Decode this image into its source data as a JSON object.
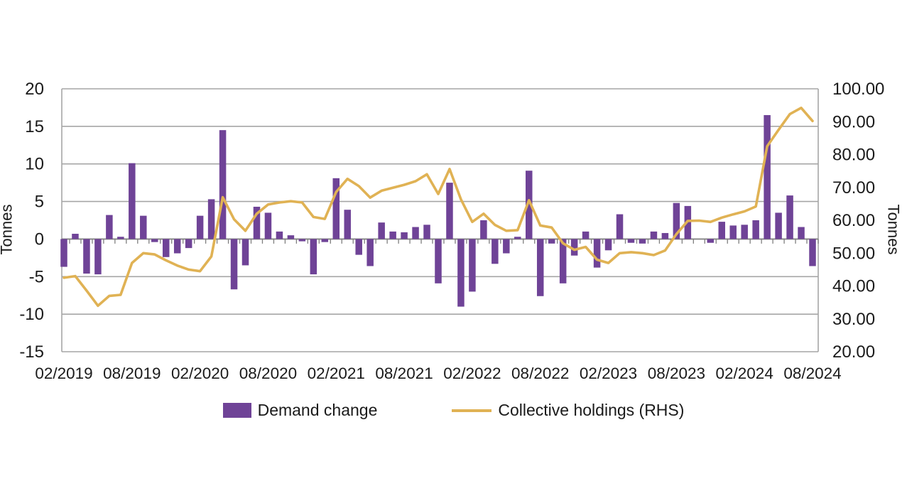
{
  "chart_data": {
    "type": "bar",
    "title": "",
    "categories": [
      "02/2019",
      "03/2019",
      "04/2019",
      "05/2019",
      "06/2019",
      "07/2019",
      "08/2019",
      "09/2019",
      "10/2019",
      "11/2019",
      "12/2019",
      "01/2020",
      "02/2020",
      "03/2020",
      "04/2020",
      "05/2020",
      "06/2020",
      "07/2020",
      "08/2020",
      "09/2020",
      "10/2020",
      "11/2020",
      "12/2020",
      "01/2021",
      "02/2021",
      "03/2021",
      "04/2021",
      "05/2021",
      "06/2021",
      "07/2021",
      "08/2021",
      "09/2021",
      "10/2021",
      "11/2021",
      "12/2021",
      "01/2022",
      "02/2022",
      "03/2022",
      "04/2022",
      "05/2022",
      "06/2022",
      "07/2022",
      "08/2022",
      "09/2022",
      "10/2022",
      "11/2022",
      "12/2022",
      "01/2023",
      "02/2023",
      "03/2023",
      "04/2023",
      "05/2023",
      "06/2023",
      "07/2023",
      "08/2023",
      "09/2023",
      "10/2023",
      "11/2023",
      "12/2023",
      "01/2024",
      "02/2024",
      "03/2024",
      "04/2024",
      "05/2024",
      "06/2024",
      "07/2024",
      "08/2024"
    ],
    "series": [
      {
        "name": "Demand change",
        "type": "bar",
        "axis": "left",
        "color": "#6F4397",
        "values": [
          -3.7,
          0.7,
          -4.6,
          -4.7,
          3.2,
          0.3,
          10.1,
          3.1,
          -0.4,
          -2.4,
          -1.9,
          -1.2,
          3.1,
          5.3,
          14.5,
          -6.7,
          -3.5,
          4.3,
          3.5,
          1.0,
          0.5,
          -0.3,
          -4.7,
          -0.4,
          8.1,
          3.9,
          -2.1,
          -3.6,
          2.2,
          1.0,
          0.9,
          1.6,
          1.9,
          -5.9,
          7.5,
          -9.0,
          -7.0,
          2.5,
          -3.3,
          -1.9,
          0.3,
          9.1,
          -7.6,
          -0.6,
          -5.9,
          -2.2,
          1.0,
          -3.8,
          -1.5,
          3.3,
          -0.5,
          -0.6,
          1.0,
          0.8,
          4.8,
          4.4,
          0.0,
          -0.5,
          2.3,
          1.8,
          1.9,
          2.5,
          16.5,
          3.5,
          5.8,
          1.6,
          -3.6
        ]
      },
      {
        "name": "Collective holdings (RHS)",
        "type": "line",
        "axis": "right",
        "color": "#E0B254",
        "values": [
          42.5,
          43.0,
          38.6,
          34.0,
          37.0,
          37.3,
          47.0,
          50.0,
          49.6,
          47.8,
          46.2,
          45.0,
          44.5,
          49.0,
          67.0,
          60.3,
          56.8,
          62.0,
          64.8,
          65.4,
          65.8,
          65.4,
          61.0,
          60.4,
          68.6,
          72.6,
          70.4,
          66.9,
          69.0,
          69.9,
          70.8,
          71.9,
          74.0,
          68.0,
          75.6,
          66.4,
          59.5,
          62.0,
          58.6,
          56.8,
          57.0,
          66.1,
          58.4,
          57.8,
          53.0,
          51.0,
          51.9,
          48.0,
          47.0,
          50.0,
          50.3,
          50.0,
          49.4,
          50.8,
          55.8,
          59.8,
          59.9,
          59.5,
          60.8,
          61.8,
          62.7,
          64.2,
          82.5,
          87.5,
          92.3,
          94.2,
          90.2
        ]
      }
    ],
    "left_axis": {
      "label": "Tonnes",
      "min": -15,
      "max": 20,
      "tick_labels": [
        "20",
        "15",
        "10",
        "5",
        "0",
        "-5",
        "-10",
        "-15"
      ]
    },
    "right_axis": {
      "label": "Tonnes",
      "min": 20,
      "max": 100,
      "tick_labels": [
        "100.00",
        "90.00",
        "80.00",
        "70.00",
        "60.00",
        "50.00",
        "40.00",
        "30.00",
        "20.00"
      ]
    },
    "x_tick_labels": [
      "02/2019",
      "08/2019",
      "02/2020",
      "08/2020",
      "02/2021",
      "08/2021",
      "02/2022",
      "08/2022",
      "02/2023",
      "08/2023",
      "02/2024",
      "08/2024"
    ],
    "x_tick_indices": [
      0,
      6,
      12,
      18,
      24,
      30,
      36,
      42,
      48,
      54,
      60,
      66
    ],
    "grid": true,
    "legend_position": "bottom"
  },
  "legend": {
    "items": [
      {
        "label": "Demand change",
        "marker": "rect",
        "color": "#6F4397"
      },
      {
        "label": "Collective holdings (RHS)",
        "marker": "line",
        "color": "#E0B254"
      }
    ]
  },
  "colors": {
    "bar": "#6F4397",
    "line": "#E0B254",
    "gridline": "#A6A6A6",
    "zero_axis": "#7F7F7F",
    "text": "#1a1a1a",
    "background": "#ffffff"
  }
}
